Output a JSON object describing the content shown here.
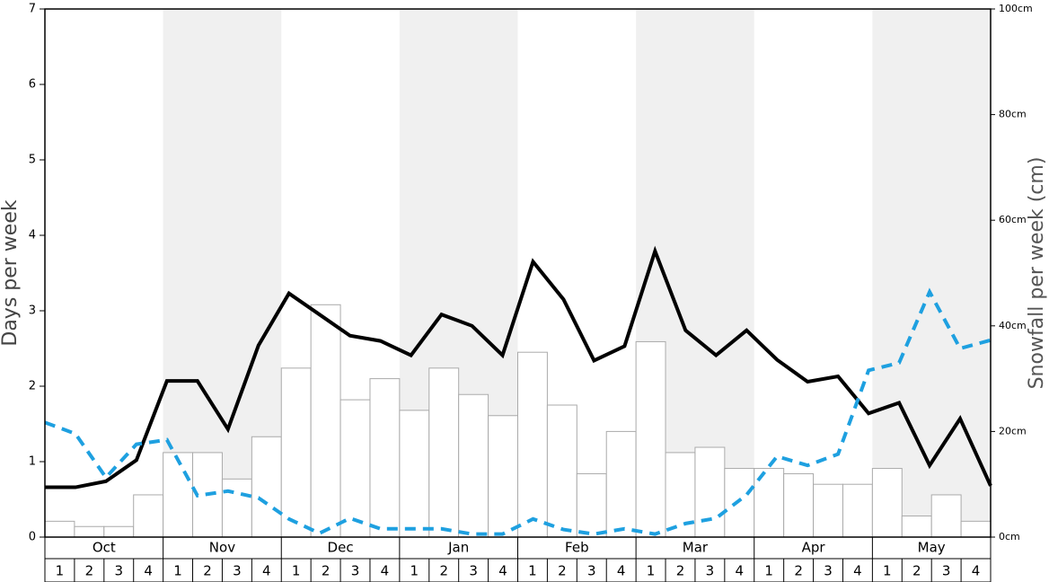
{
  "chart_data": {
    "type": "combo",
    "y_label": "Days per week",
    "y2_label": "Snowfall per week (cm)",
    "months": [
      "Oct",
      "Nov",
      "Dec",
      "Jan",
      "Feb",
      "Mar",
      "Apr",
      "May"
    ],
    "categories": [
      "1",
      "2",
      "3",
      "4",
      "1",
      "2",
      "3",
      "4",
      "1",
      "2",
      "3",
      "4",
      "1",
      "2",
      "3",
      "4",
      "1",
      "2",
      "3",
      "4",
      "1",
      "2",
      "3",
      "4",
      "1",
      "2",
      "3",
      "4",
      "1",
      "2",
      "3",
      "4"
    ],
    "ylim": [
      0,
      7
    ],
    "yticks": [
      0,
      1,
      2,
      3,
      4,
      5,
      6,
      7
    ],
    "y2lim": [
      0,
      100
    ],
    "y2ticks": [
      {
        "value": 0,
        "label": "0cm"
      },
      {
        "value": 20,
        "label": "20cm"
      },
      {
        "value": 40,
        "label": "40cm"
      },
      {
        "value": 60,
        "label": "60cm"
      },
      {
        "value": 80,
        "label": "80cm"
      },
      {
        "value": 100,
        "label": "100cm"
      }
    ],
    "series": [
      {
        "type": "bar",
        "axis": "y2",
        "color": "#ffffff",
        "stroke": "#aaaaaa",
        "values": [
          3,
          2,
          2,
          8,
          16,
          16,
          11,
          19,
          32,
          44,
          26,
          30,
          24,
          32,
          27,
          23,
          35,
          25,
          12,
          20,
          37,
          16,
          17,
          13,
          13,
          12,
          10,
          10,
          13,
          4,
          8,
          3
        ]
      },
      {
        "type": "line",
        "axis": "y",
        "color": "#000000",
        "dashed": false,
        "values": [
          0.66,
          0.66,
          0.74,
          1.02,
          2.07,
          2.07,
          1.43,
          2.54,
          3.23,
          2.95,
          2.67,
          2.6,
          2.41,
          2.95,
          2.8,
          2.41,
          3.65,
          3.15,
          2.34,
          2.53,
          3.79,
          2.74,
          2.41,
          2.74,
          2.35,
          2.06,
          2.13,
          1.64,
          1.78,
          0.95,
          1.57,
          0.68
        ]
      },
      {
        "type": "line",
        "axis": "y",
        "color": "#1ea0e0",
        "dashed": true,
        "values": [
          1.52,
          1.37,
          0.79,
          1.23,
          1.29,
          0.55,
          0.61,
          0.52,
          0.24,
          0.05,
          0.25,
          0.11,
          0.11,
          0.11,
          0.04,
          0.04,
          0.24,
          0.1,
          0.04,
          0.11,
          0.04,
          0.18,
          0.25,
          0.56,
          1.07,
          0.95,
          1.1,
          2.21,
          2.31,
          3.25,
          2.5,
          2.61
        ]
      }
    ]
  }
}
